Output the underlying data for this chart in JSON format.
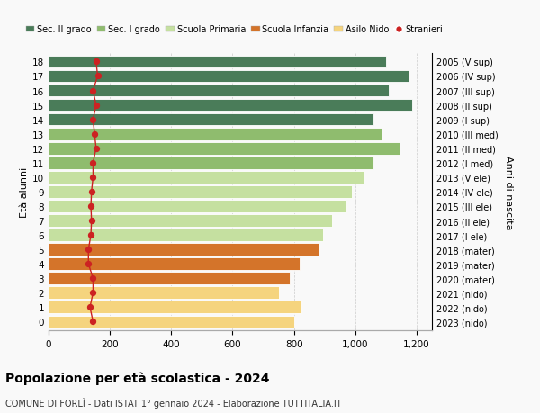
{
  "ages": [
    18,
    17,
    16,
    15,
    14,
    13,
    12,
    11,
    10,
    9,
    8,
    7,
    6,
    5,
    4,
    3,
    2,
    1,
    0
  ],
  "right_labels": [
    "2005 (V sup)",
    "2006 (IV sup)",
    "2007 (III sup)",
    "2008 (II sup)",
    "2009 (I sup)",
    "2010 (III med)",
    "2011 (II med)",
    "2012 (I med)",
    "2013 (V ele)",
    "2014 (IV ele)",
    "2015 (III ele)",
    "2016 (II ele)",
    "2017 (I ele)",
    "2018 (mater)",
    "2019 (mater)",
    "2020 (mater)",
    "2021 (nido)",
    "2022 (nido)",
    "2023 (nido)"
  ],
  "bar_values": [
    1100,
    1175,
    1110,
    1185,
    1060,
    1085,
    1145,
    1060,
    1030,
    990,
    970,
    925,
    895,
    880,
    820,
    785,
    750,
    825,
    800
  ],
  "bar_colors": [
    "#4a7c59",
    "#4a7c59",
    "#4a7c59",
    "#4a7c59",
    "#4a7c59",
    "#8fbc6e",
    "#8fbc6e",
    "#8fbc6e",
    "#c5e0a0",
    "#c5e0a0",
    "#c5e0a0",
    "#c5e0a0",
    "#c5e0a0",
    "#d4742a",
    "#d4742a",
    "#d4742a",
    "#f5d47e",
    "#f5d47e",
    "#f5d47e"
  ],
  "stranieri_values": [
    155,
    160,
    145,
    155,
    145,
    150,
    155,
    145,
    145,
    140,
    138,
    140,
    138,
    130,
    130,
    145,
    145,
    135,
    145
  ],
  "legend_labels": [
    "Sec. II grado",
    "Sec. I grado",
    "Scuola Primaria",
    "Scuola Infanzia",
    "Asilo Nido",
    "Stranieri"
  ],
  "legend_colors": [
    "#4a7c59",
    "#8fbc6e",
    "#c5e0a0",
    "#d4742a",
    "#f5d47e",
    "#cc2222"
  ],
  "ylabel_left": "Età alunni",
  "ylabel_right": "Anni di nascita",
  "title": "Popolazione per età scolastica - 2024",
  "subtitle": "COMUNE DI FORLÌ - Dati ISTAT 1° gennaio 2024 - Elaborazione TUTTITALIA.IT",
  "xlim": [
    0,
    1250
  ],
  "xticks": [
    0,
    200,
    400,
    600,
    800,
    1000,
    1200
  ],
  "xtick_labels": [
    "0",
    "200",
    "400",
    "600",
    "800",
    "1,000",
    "1,200"
  ],
  "bg_color": "#f9f9f9",
  "bar_edgecolor": "white",
  "grid_color": "#cccccc"
}
